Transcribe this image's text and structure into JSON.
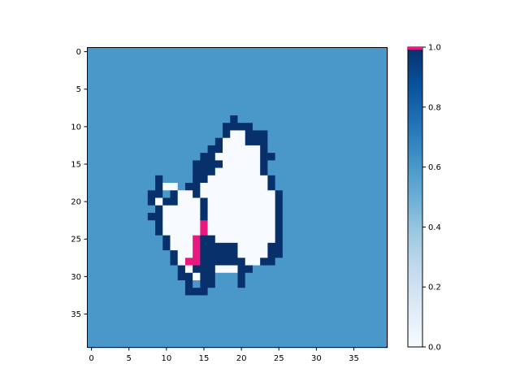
{
  "chart_data": {
    "type": "heatmap",
    "title": "",
    "xlabel": "",
    "ylabel": "",
    "grid": false,
    "xlim": [
      -0.5,
      39.5
    ],
    "ylim": [
      39.5,
      -0.5
    ],
    "x_ticks": [
      0,
      5,
      10,
      15,
      20,
      25,
      30,
      35
    ],
    "y_ticks": [
      0,
      5,
      10,
      15,
      20,
      25,
      30,
      35
    ],
    "colormap": "Blues",
    "colorbar": {
      "min": 0.0,
      "max": 1.0,
      "ticks": [
        "0.0",
        "0.2",
        "0.4",
        "0.6",
        "0.8",
        "1.0"
      ]
    },
    "highlight_color": "#e8197f",
    "nrows": 40,
    "ncols": 40,
    "background_value": 0.6,
    "rows": [
      "........................................",
      "........................................",
      "........................................",
      "........................................",
      "........................................",
      "........................................",
      "........................................",
      "........................................",
      "........................................",
      "...................#....................",
      "..................####..................",
      "..................#  ###................",
      ".................#   ###................",
      "................##     #................",
      "...............##      ##...............",
      "..............####     #................",
      "..............###      #................",
      ".........#....##        #...............",
      ".........#  .##         #...............",
      "........##.#  #          #..............",
      "........# ##   #         #..............",
      ".........#     #         #..............",
      "........##     #         #..............",
      ".........#     P         #..............",
      ".........#     P         #..............",
      "..........#   P##        #..............",
      "..........#   P#####    ##..............",
      "...........#  P#####    ##..............",
      "...........# PP######  ##...............",
      "............# ###   ##..................",
      "............## ##...#...................",
      ".............#.##...#...................",
      ".............###........................",
      "........................................",
      "........................................",
      "........................................",
      "........................................",
      "........................................",
      "........................................",
      "........................................"
    ],
    "legend": {
      "#": 1.0,
      ".": 0.6,
      " ": 0.0,
      "P": "highlight"
    }
  }
}
